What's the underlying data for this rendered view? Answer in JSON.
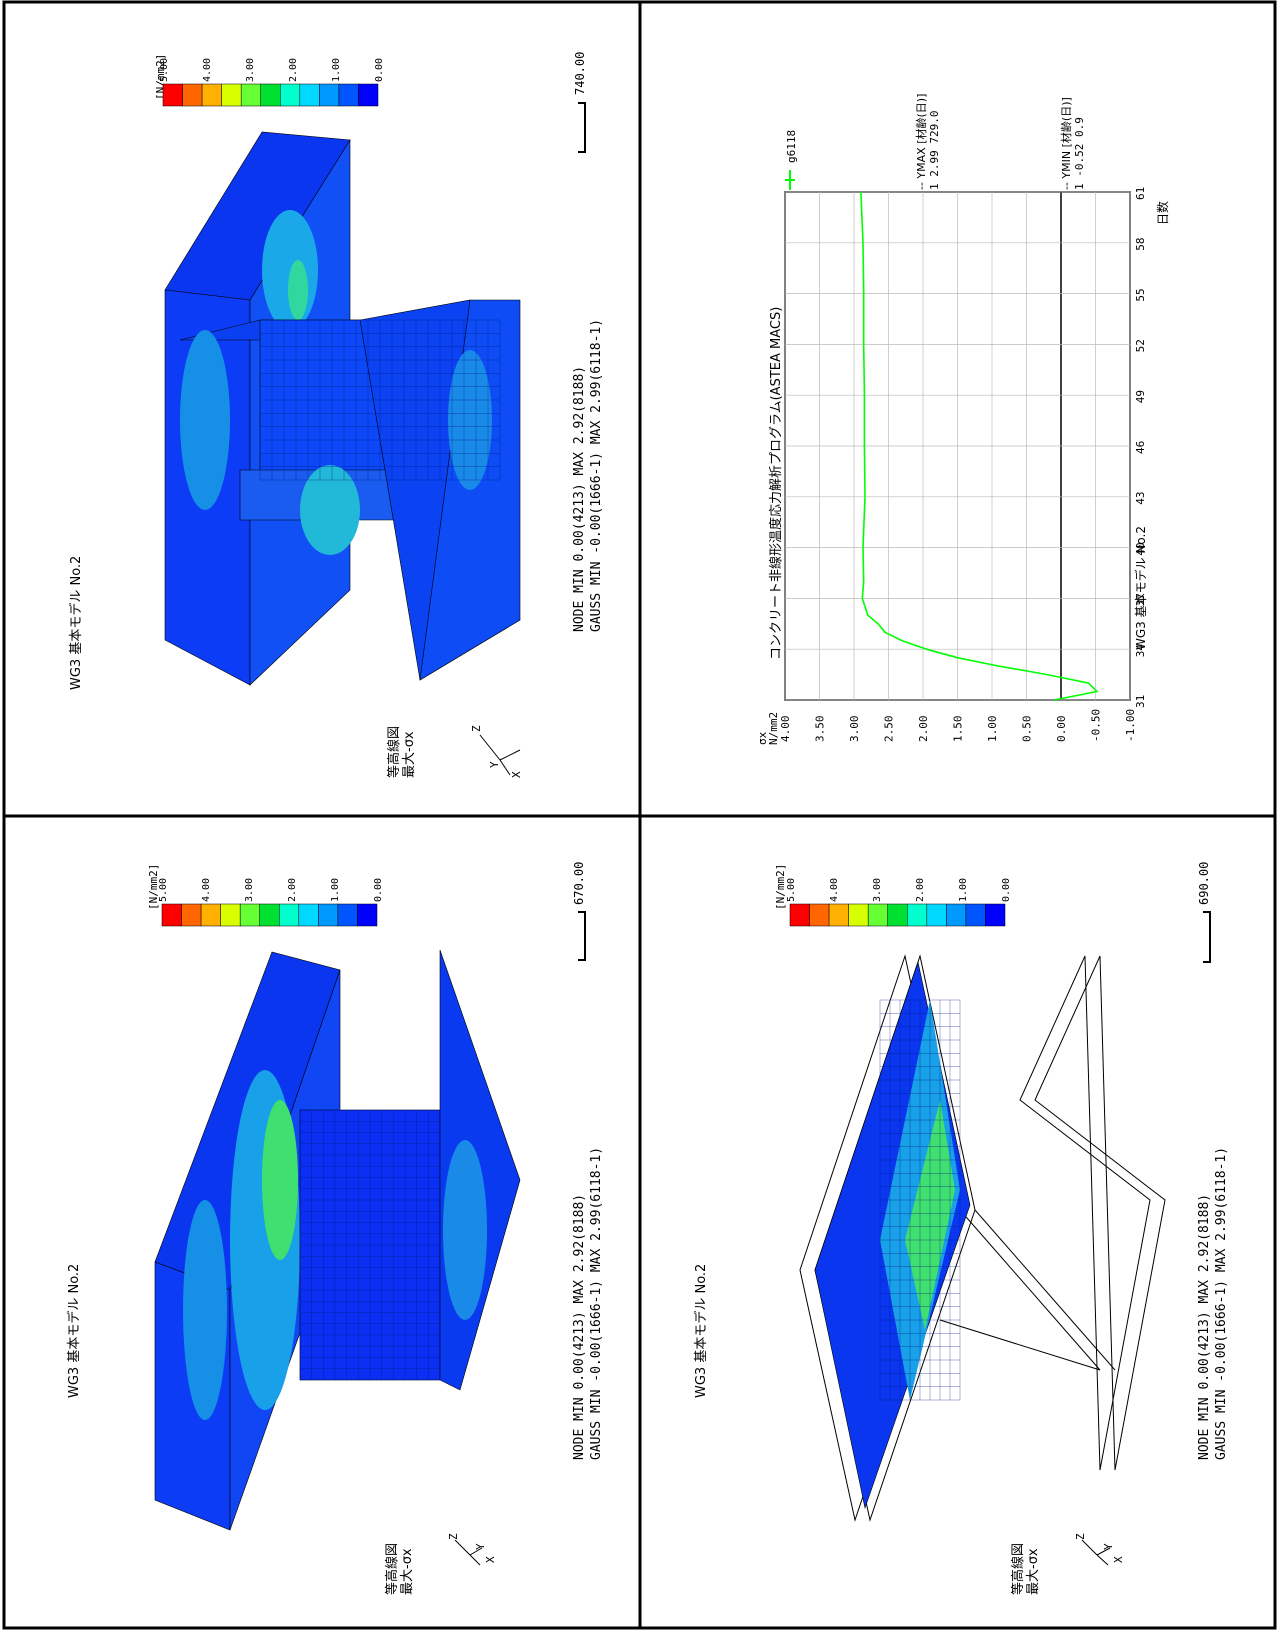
{
  "panels": {
    "top_right": {
      "title": "WG3 基本モデル  No.2",
      "contour_label_1": "等高線図",
      "contour_label_2": "最大-σx",
      "node_line": "NODE  MIN 0.00(4213)   MAX 2.92(8188)",
      "gauss_line": "GAUSS MIN -0.00(1666-1)  MAX 2.99(6118-1)",
      "scale_value": "740.00",
      "axes": {
        "z": "Z",
        "y": "Y",
        "x": "X"
      }
    },
    "top_left": {
      "title": "WG3 基本モデル  No.2",
      "contour_label_1": "等高線図",
      "contour_label_2": "最大-σx",
      "node_line": "NODE  MIN 0.00(4213)   MAX 2.92(8188)",
      "gauss_line": "GAUSS MIN -0.00(1666-1)  MAX 2.99(6118-1)",
      "scale_value": "670.00",
      "axes": {
        "z": "Z",
        "y": "Y",
        "x": "X"
      }
    },
    "bottom_left": {
      "title": "WG3 基本モデル  No.2",
      "contour_label_1": "等高線図",
      "contour_label_2": "最大-σx",
      "node_line": "NODE  MIN 0.00(4213)   MAX 2.92(8188)",
      "gauss_line": "GAUSS MIN -0.00(1666-1)  MAX 2.99(6118-1)",
      "scale_value": "690.00",
      "axes": {
        "z": "Z",
        "y": "Y",
        "x": "X"
      }
    }
  },
  "colorbar": {
    "unit": "[N/mm2]",
    "ticks": [
      "5.00",
      "4.00",
      "3.00",
      "2.00",
      "1.00",
      "0.00"
    ],
    "colors": [
      "#ff0000",
      "#ff6600",
      "#ffb000",
      "#d8ff00",
      "#66ff33",
      "#00e030",
      "#00ffcc",
      "#00d8ff",
      "#0099ff",
      "#0055ff",
      "#0000ff"
    ]
  },
  "chart_data": {
    "type": "line",
    "title": "コンクリート非線形温度応力解析プログラム(ASTEA MACS)",
    "subtitle": "WG3 基本モデル  No.2",
    "ylabel": "σx",
    "yunit": "N/mm2",
    "xlabel": "日数",
    "xlim": [
      31,
      61
    ],
    "ylim": [
      -1.0,
      4.0
    ],
    "xticks": [
      "31",
      "34",
      "37",
      "40",
      "43",
      "46",
      "49",
      "52",
      "55",
      "58",
      "61"
    ],
    "yticks": [
      "4.00",
      "3.50",
      "3.00",
      "2.50",
      "2.00",
      "1.50",
      "1.00",
      "0.50",
      "0.00",
      "-0.50",
      "-1.00"
    ],
    "series": [
      {
        "name": "g6118",
        "color": "#00ff00",
        "x": [
          31,
          31.5,
          32,
          32.5,
          33,
          33.5,
          34,
          34.5,
          35,
          35.5,
          36,
          37,
          38,
          40,
          43,
          46,
          49,
          52,
          55,
          58,
          61
        ],
        "y": [
          0.1,
          -0.52,
          -0.4,
          0.2,
          0.9,
          1.5,
          1.95,
          2.3,
          2.55,
          2.65,
          2.8,
          2.88,
          2.86,
          2.87,
          2.84,
          2.85,
          2.85,
          2.86,
          2.86,
          2.87,
          2.9
        ]
      }
    ],
    "legend": {
      "series_label": "g6118",
      "ymax_header": "-- YMAX [材齢(日)]",
      "ymax_values": "1  2.99  729.0",
      "ymin_header": "-- YMIN [材齢(日)]",
      "ymin_values": "1  -0.52    0.9"
    }
  }
}
